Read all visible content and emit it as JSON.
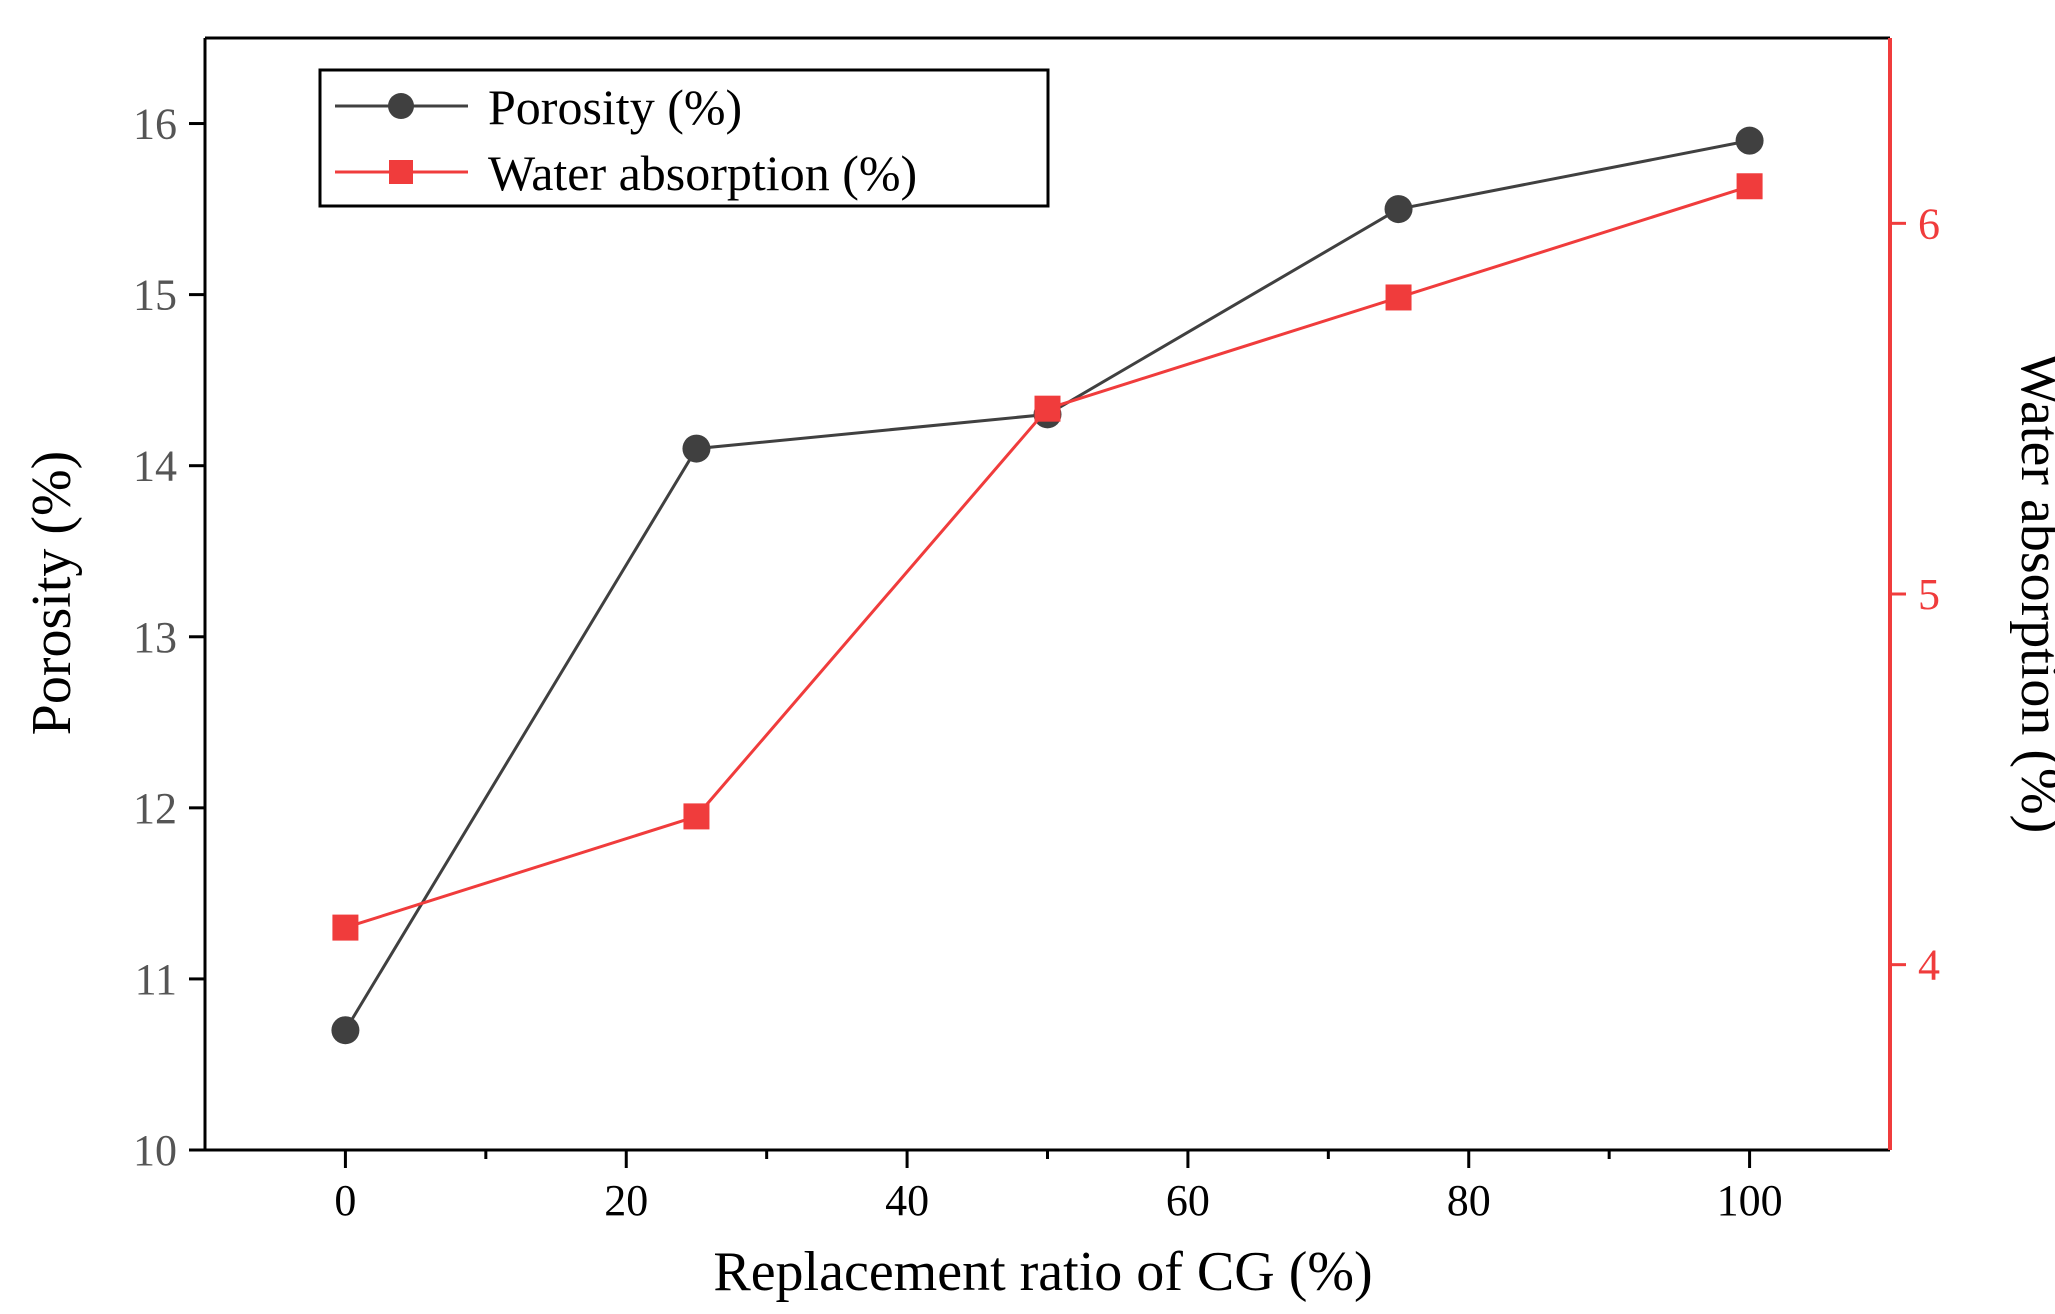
{
  "chart_data": {
    "type": "line",
    "xlabel": "Replacement ratio of CG (%)",
    "ylabel_left": "Porosity (%)",
    "ylabel_right": "Water absorption (%)",
    "xlim": [
      -10,
      110
    ],
    "xticks": [
      0,
      20,
      40,
      60,
      80,
      100
    ],
    "xticks_minor": [
      10,
      30,
      50,
      70,
      90
    ],
    "ylim_left": [
      10,
      16.5
    ],
    "yticks_left": [
      10,
      11,
      12,
      13,
      14,
      15,
      16
    ],
    "ylim_right": [
      3.5,
      6.5
    ],
    "yticks_right": [
      4,
      5,
      6
    ],
    "legend_position": "top-left",
    "grid": false,
    "series": [
      {
        "name": "Porosity (%)",
        "axis": "left",
        "marker": "circle",
        "color": "#404040",
        "x": [
          0,
          25,
          50,
          75,
          100
        ],
        "y": [
          10.7,
          14.1,
          14.3,
          15.5,
          15.9
        ]
      },
      {
        "name": "Water absorption (%)",
        "axis": "right",
        "marker": "square",
        "color": "#f03c3c",
        "x": [
          0,
          25,
          50,
          75,
          100
        ],
        "y": [
          4.1,
          4.4,
          5.5,
          5.8,
          6.1
        ]
      }
    ]
  }
}
